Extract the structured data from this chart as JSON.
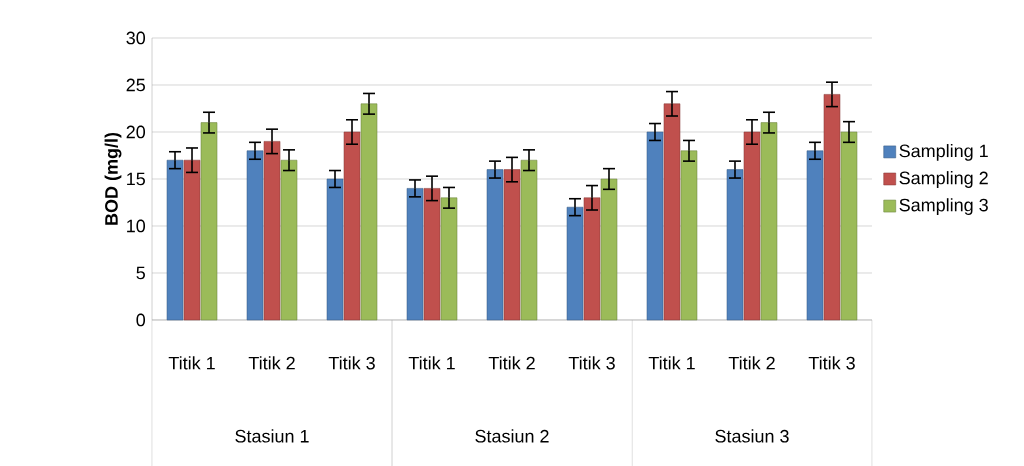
{
  "chart_data": {
    "type": "bar",
    "ylabel": "BOD (mg/l)",
    "categories": [
      "Titik 1",
      "Titik 2",
      "Titik 3",
      "Titik 1",
      "Titik 2",
      "Titik 3",
      "Titik 1",
      "Titik 2",
      "Titik 3"
    ],
    "annotations": [
      "Stasiun 1",
      "Stasiun 2",
      "Stasiun 3"
    ],
    "series": [
      {
        "name": "Sampling 1",
        "color": "#4f81bd",
        "values": [
          17,
          18,
          15,
          14,
          16,
          12,
          20,
          16,
          18
        ],
        "errors": [
          0.9,
          0.9,
          0.9,
          0.9,
          0.9,
          0.9,
          0.9,
          0.9,
          0.9
        ]
      },
      {
        "name": "Sampling 2",
        "color": "#c0504d",
        "values": [
          17,
          19,
          20,
          14,
          16,
          13,
          23,
          20,
          24
        ],
        "errors": [
          1.3,
          1.3,
          1.3,
          1.3,
          1.3,
          1.3,
          1.3,
          1.3,
          1.3
        ]
      },
      {
        "name": "Sampling 3",
        "color": "#9bbb59",
        "values": [
          21,
          17,
          23,
          13,
          17,
          15,
          18,
          21,
          20
        ],
        "errors": [
          1.1,
          1.1,
          1.1,
          1.1,
          1.1,
          1.1,
          1.1,
          1.1,
          1.1
        ]
      }
    ],
    "ylim": [
      0,
      30
    ],
    "yticks": [
      0,
      5,
      10,
      15,
      20,
      25,
      30
    ],
    "grid": "y",
    "legend": "right"
  }
}
